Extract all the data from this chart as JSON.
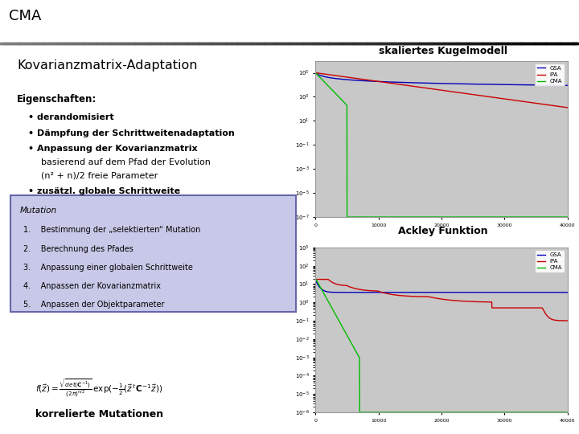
{
  "title": "CMA",
  "background_color": "#ffffff",
  "main_title": "Kovarianzmatrix-Adaptation",
  "subtitle1": "skaliertes Kugelmodell",
  "subtitle2": "Ackley Funktion",
  "eigenschaften_title": "Eigenschaften:",
  "bullets": [
    "• derandomisiert",
    "• Dämpfung der Schrittweitenadaptation",
    "• Anpassung der Kovarianzmatrix",
    "  basierend auf dem Pfad der Evolution",
    "  (n² + n)/2 freie Parameter",
    "• zusätzl. globale Schrittweite"
  ],
  "mutation_title": "Mutation",
  "mutation_items": [
    "1.    Bestimmung der „selektierten“ Mutation",
    "2.    Berechnung des Pfades",
    "3.    Anpassung einer globalen Schrittweite",
    "4.    Anpassen der Kovarianzmatrix",
    "5.    Anpassen der Objektparameter"
  ],
  "formula_label": "korrelierte Mutationen",
  "legend_labels": [
    "GSA",
    "IPA",
    "CMA"
  ],
  "line_colors": [
    "#0000bb",
    "#cc0000",
    "#00bb00"
  ],
  "plot_bg": "#c8c8c8",
  "plot_border": "#999999",
  "mutation_box_face": "#c8c8e8",
  "mutation_box_edge": "#6666aa"
}
